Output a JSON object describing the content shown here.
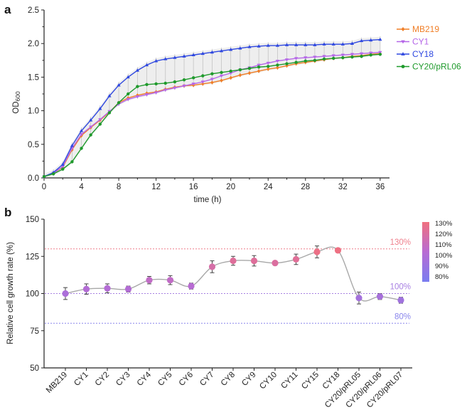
{
  "chart_data": [
    {
      "type": "line",
      "panel_label": "a",
      "xlabel": "time (h)",
      "ylabel": "OD600",
      "ylabel_main": "OD",
      "ylabel_sub": "600",
      "xlim": [
        0,
        37
      ],
      "ylim": [
        0,
        2.5
      ],
      "xticks": [
        "0",
        "4",
        "8",
        "12",
        "16",
        "20",
        "24",
        "28",
        "32",
        "36"
      ],
      "yticks": [
        "0.0",
        "0.5",
        "1.0",
        "1.5",
        "2.0",
        "2.5"
      ],
      "legend_position": "top-right",
      "x": [
        0,
        1,
        2,
        3,
        4,
        5,
        6,
        7,
        8,
        9,
        10,
        11,
        12,
        13,
        14,
        15,
        16,
        17,
        18,
        19,
        20,
        21,
        22,
        23,
        24,
        25,
        26,
        27,
        28,
        29,
        30,
        31,
        32,
        33,
        34,
        35,
        36
      ],
      "series": [
        {
          "name": "MB219",
          "color": "#f07e26",
          "marker": "diamond",
          "values": [
            0.02,
            0.07,
            0.16,
            0.42,
            0.63,
            0.75,
            0.86,
            0.98,
            1.12,
            1.19,
            1.23,
            1.26,
            1.28,
            1.32,
            1.35,
            1.37,
            1.38,
            1.4,
            1.42,
            1.45,
            1.49,
            1.53,
            1.56,
            1.59,
            1.62,
            1.64,
            1.67,
            1.7,
            1.72,
            1.74,
            1.76,
            1.78,
            1.79,
            1.81,
            1.82,
            1.84,
            1.85
          ]
        },
        {
          "name": "CY1",
          "color": "#b566e8",
          "marker": "triangle-down",
          "values": [
            0.02,
            0.07,
            0.17,
            0.44,
            0.65,
            0.76,
            0.87,
            0.99,
            1.1,
            1.17,
            1.21,
            1.24,
            1.27,
            1.31,
            1.34,
            1.37,
            1.4,
            1.43,
            1.47,
            1.52,
            1.56,
            1.61,
            1.64,
            1.68,
            1.71,
            1.74,
            1.76,
            1.78,
            1.79,
            1.8,
            1.81,
            1.82,
            1.83,
            1.84,
            1.85,
            1.86,
            1.87
          ]
        },
        {
          "name": "CY18",
          "color": "#2f48e0",
          "marker": "triangle-up",
          "values": [
            0.02,
            0.08,
            0.2,
            0.48,
            0.7,
            0.86,
            1.03,
            1.22,
            1.38,
            1.5,
            1.6,
            1.68,
            1.74,
            1.77,
            1.79,
            1.81,
            1.83,
            1.85,
            1.87,
            1.89,
            1.91,
            1.93,
            1.95,
            1.96,
            1.97,
            1.97,
            1.98,
            1.98,
            1.98,
            1.98,
            1.99,
            1.99,
            1.99,
            2.0,
            2.04,
            2.05,
            2.06
          ]
        },
        {
          "name": "CY20/pRL06",
          "color": "#1f9a2c",
          "marker": "circle",
          "values": [
            0.02,
            0.06,
            0.13,
            0.24,
            0.44,
            0.64,
            0.8,
            0.97,
            1.12,
            1.25,
            1.36,
            1.39,
            1.4,
            1.41,
            1.43,
            1.46,
            1.49,
            1.52,
            1.55,
            1.57,
            1.59,
            1.61,
            1.63,
            1.65,
            1.66,
            1.68,
            1.7,
            1.72,
            1.74,
            1.75,
            1.77,
            1.78,
            1.79,
            1.8,
            1.81,
            1.83,
            1.84
          ]
        }
      ]
    },
    {
      "type": "scatter",
      "panel_label": "b",
      "ylabel": "Relative cell growth rate (%)",
      "ylim": [
        50,
        150
      ],
      "yticks": [
        "50",
        "75",
        "100",
        "125",
        "150"
      ],
      "categories": [
        "MB219",
        "CY1",
        "CY2",
        "CY3",
        "CY4",
        "CY5",
        "CY6",
        "CY7",
        "CY8",
        "CY9",
        "CY10",
        "CY11",
        "CY15",
        "CY18",
        "CY20/pRL05",
        "CY20/pRL06",
        "CY20/pRL07"
      ],
      "values": [
        100,
        103,
        103.5,
        103,
        109,
        109,
        105,
        118,
        122,
        122,
        120.5,
        123,
        128,
        129,
        97,
        98,
        95.5
      ],
      "errors": [
        4,
        3.5,
        3,
        2,
        2.5,
        3,
        2,
        4,
        3,
        3.5,
        1.5,
        3.5,
        4,
        1.5,
        4,
        2,
        2
      ],
      "reference_lines": [
        {
          "value": 130,
          "label": "130%",
          "color": "#ef7f8c"
        },
        {
          "value": 100,
          "label": "100%",
          "color": "#a77fe2"
        },
        {
          "value": 80,
          "label": "80%",
          "color": "#8a86ec"
        }
      ],
      "colorbar": {
        "ticks": [
          "130%",
          "120%",
          "110%",
          "100%",
          "90%",
          "80%"
        ],
        "min": 80,
        "max": 130,
        "color_low": "#7a7df0",
        "color_mid": "#b86bd3",
        "color_high": "#f0707f"
      },
      "curve_color": "#a8a8a8"
    }
  ]
}
